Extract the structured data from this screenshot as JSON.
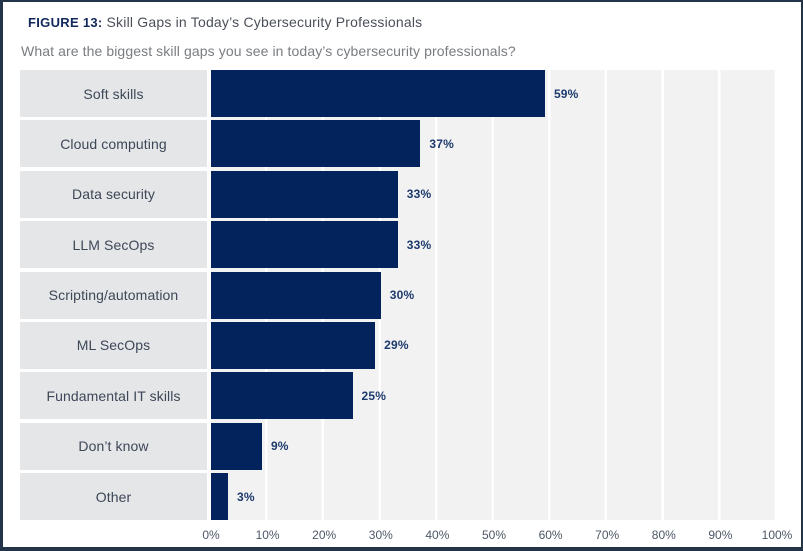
{
  "figure": {
    "label": "FIGURE 13:",
    "title": "Skill Gaps in Today’s Cybersecurity Professionals",
    "subtitle": "What are the biggest skill gaps you see in today’s cybersecurity professionals?"
  },
  "chart_data": {
    "type": "bar",
    "orientation": "horizontal",
    "title": "Skill Gaps in Today’s Cybersecurity Professionals",
    "question": "What are the biggest skill gaps you see in today’s cybersecurity professionals?",
    "categories": [
      "Soft skills",
      "Cloud computing",
      "Data security",
      "LLM SecOps",
      "Scripting/automation",
      "ML SecOps",
      "Fundamental IT skills",
      "Don’t know",
      "Other"
    ],
    "values": [
      59,
      37,
      33,
      33,
      30,
      29,
      25,
      9,
      3
    ],
    "value_labels": [
      "59%",
      "37%",
      "33%",
      "33%",
      "30%",
      "29%",
      "25%",
      "9%",
      "3%"
    ],
    "x_tick_labels": [
      "0%",
      "10%",
      "20%",
      "30%",
      "40%",
      "50%",
      "60%",
      "70%",
      "80%",
      "90%",
      "100%"
    ],
    "xlim": [
      0,
      100
    ],
    "grid": "vertical-white-lines",
    "legend": "none",
    "colors": {
      "bar": "#03235c",
      "value_label": "#1d3a6c",
      "category_cell_bg": "#e5e6e8",
      "category_text": "#3d4757",
      "plot_bg": "#f2f2f3",
      "gridline": "#ffffff",
      "axis_text": "#4d5766",
      "figure_label": "#12295b",
      "title_text": "#4b5058",
      "subtitle_text": "#797c81",
      "panel_border": "#233449"
    }
  }
}
